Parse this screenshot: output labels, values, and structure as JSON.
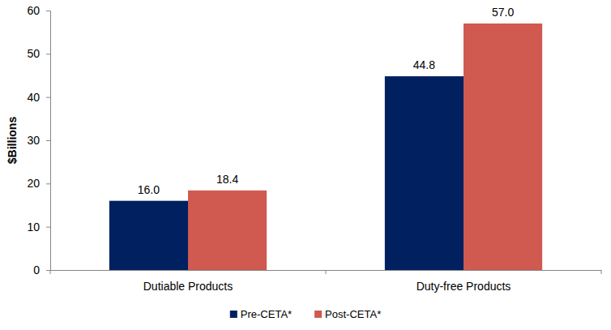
{
  "chart_data": {
    "type": "bar",
    "categories": [
      "Dutiable Products",
      "Duty-free Products"
    ],
    "y_label": "$Billions",
    "series": [
      {
        "name": "Pre-CETA*",
        "color": "#002060",
        "values": [
          16.0,
          44.8
        ],
        "value_labels": [
          "16.0",
          "44.8"
        ]
      },
      {
        "name": "Post-CETA*",
        "color": "#d05a50",
        "values": [
          18.4,
          57.0
        ],
        "value_labels": [
          "18.4",
          "57.0"
        ]
      }
    ],
    "ylim": [
      0,
      60
    ],
    "yticks": [
      0,
      10,
      20,
      30,
      40,
      50,
      60
    ],
    "grid": false,
    "data_labels": true,
    "legend": "bottom"
  }
}
